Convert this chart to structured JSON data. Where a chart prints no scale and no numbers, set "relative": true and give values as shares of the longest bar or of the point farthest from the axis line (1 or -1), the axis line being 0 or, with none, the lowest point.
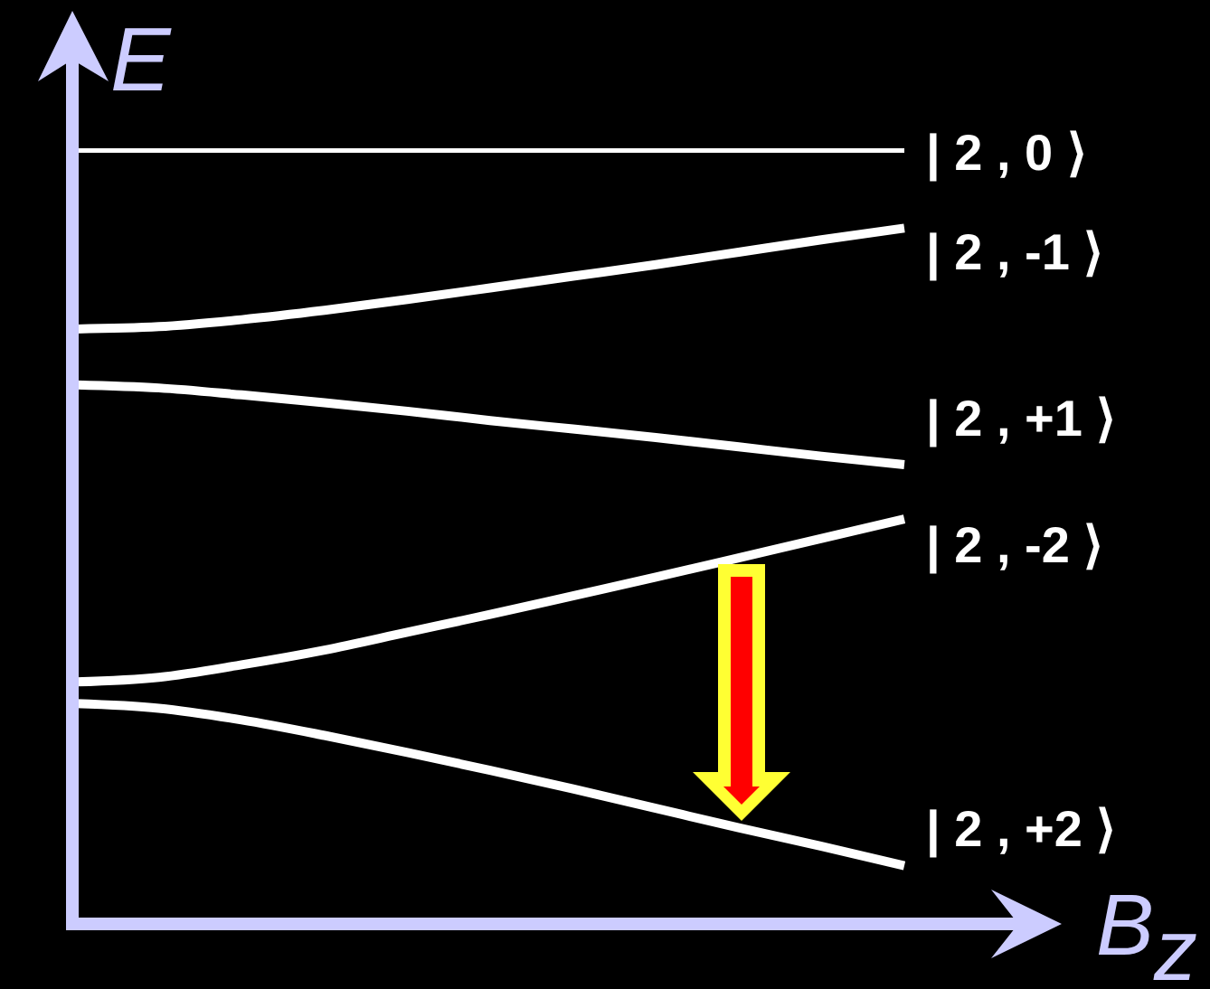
{
  "chart_data": {
    "type": "line",
    "xlabel": "B$_{z}$",
    "ylabel": "E",
    "relative": true,
    "categories": [
      null,
      null,
      null,
      null,
      null,
      null,
      null,
      null,
      null,
      null,
      null
    ],
    "series": [
      {
        "name": "| 2 , 0 ⟩",
        "color": "#ffffff",
        "values": [
          1,
          1,
          1,
          1,
          1,
          1,
          1,
          1,
          1,
          1,
          1
        ]
      },
      {
        "name": "| 2 , -1 ⟩",
        "color": "#ffffff",
        "values": [
          0.767,
          0.77,
          0.779,
          0.791,
          0.805,
          0.82,
          0.835,
          0.85,
          0.866,
          0.882,
          0.897
        ]
      },
      {
        "name": "| 2 , +1 ⟩",
        "color": "#ffffff",
        "values": [
          0.695,
          0.691,
          0.682,
          0.672,
          0.661,
          0.649,
          0.638,
          0.627,
          0.615,
          0.603,
          0.592
        ]
      },
      {
        "name": "| 2 , -2 ⟩",
        "color": "#ffffff",
        "values": [
          0.312,
          0.318,
          0.334,
          0.353,
          0.376,
          0.399,
          0.423,
          0.447,
          0.472,
          0.497,
          0.522
        ]
      },
      {
        "name": "| 2 , +2 ⟩",
        "color": "#ffffff",
        "values": [
          0.284,
          0.278,
          0.263,
          0.243,
          0.221,
          0.198,
          0.174,
          0.149,
          0.124,
          0.1,
          0.075
        ]
      }
    ]
  }
}
